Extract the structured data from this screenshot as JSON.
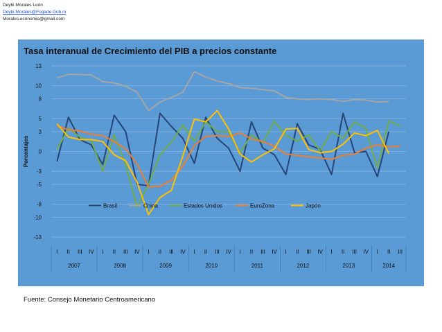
{
  "header": {
    "author": "Deybi Morales León",
    "email1": "Deybi.Morales@Fogade.Gob.ni",
    "email2": "Morales.economia@gmail.com"
  },
  "source": "Fuente: Consejo Monetario Centroamericano",
  "colors": {
    "panel": "#5b9bd5",
    "Brasil": "#264478",
    "China": "#a5a5a5",
    "Estados Unidos": "#70ad47",
    "EuroZona": "#ed7d31",
    "Japón": "#ffc000"
  },
  "chart_data": {
    "type": "line",
    "title": "Tasa interanual de Crecimiento del PIB a precios constante",
    "ylabel": "Porcentajes",
    "xlabel": "",
    "ylim": [
      -13,
      13
    ],
    "yticks": [
      13,
      10,
      8,
      5,
      3,
      0,
      -3,
      -5,
      -8,
      -10,
      -13
    ],
    "grid": true,
    "legend": "inside-bottom-center",
    "quarters": [
      "I",
      "II",
      "III",
      "IV",
      "I",
      "II",
      "III",
      "IV",
      "I",
      "II",
      "III",
      "IV",
      "I",
      "II",
      "III",
      "IV",
      "I",
      "II",
      "III",
      "IV",
      "I",
      "II",
      "III",
      "IV",
      "I",
      "II",
      "III",
      "IV",
      "I",
      "II",
      "III"
    ],
    "years": [
      "2007",
      "2008",
      "2009",
      "2010",
      "2011",
      "2012",
      "2013",
      "2014"
    ],
    "series": [
      {
        "name": "Brasil",
        "values": [
          -1.5,
          5.2,
          1.8,
          1.0,
          -2.0,
          5.5,
          3.0,
          -5.0,
          -5.2,
          5.8,
          3.8,
          2.0,
          -1.8,
          5.2,
          2.0,
          0.5,
          -3.0,
          4.5,
          0.5,
          -0.5,
          -3.5,
          4.2,
          1.0,
          0.3,
          -3.5,
          5.8,
          -0.2,
          0.0,
          -3.8,
          3.0,
          null
        ]
      },
      {
        "name": "China",
        "values": [
          11.2,
          11.7,
          11.7,
          11.6,
          10.6,
          10.4,
          9.9,
          9.0,
          6.2,
          7.5,
          8.2,
          9.0,
          12.1,
          11.3,
          10.7,
          10.3,
          9.7,
          9.6,
          9.4,
          9.2,
          8.2,
          8.0,
          7.9,
          8.0,
          7.9,
          7.6,
          7.9,
          7.8,
          7.5,
          7.6,
          null
        ]
      },
      {
        "name": "Estados Unidos",
        "values": [
          0.3,
          3.5,
          2.2,
          1.6,
          -3.0,
          2.5,
          -2.0,
          -8.5,
          -5.0,
          -0.5,
          1.4,
          4.0,
          1.5,
          4.5,
          3.0,
          3.0,
          -0.2,
          2.5,
          1.3,
          4.6,
          2.4,
          1.6,
          2.5,
          0.1,
          3.0,
          2.0,
          4.5,
          3.5,
          -2.5,
          4.6,
          3.9
        ]
      },
      {
        "name": "EuroZona",
        "values": [
          3.9,
          3.3,
          3.1,
          2.6,
          2.4,
          1.5,
          0.4,
          -1.9,
          -5.4,
          -5.3,
          -4.4,
          -2.2,
          0.9,
          2.3,
          2.4,
          2.3,
          2.8,
          1.9,
          1.5,
          0.8,
          -0.4,
          -0.6,
          -0.8,
          -1.0,
          -1.2,
          -0.6,
          -0.4,
          0.5,
          1.0,
          0.7,
          0.8
        ]
      },
      {
        "name": "Japón",
        "values": [
          4.2,
          2.2,
          1.8,
          1.8,
          1.5,
          -0.5,
          -1.4,
          -4.7,
          -9.6,
          -7.0,
          -5.9,
          -0.7,
          4.9,
          4.5,
          6.2,
          3.4,
          -0.4,
          -1.6,
          -0.5,
          0.4,
          3.4,
          3.5,
          0.3,
          -0.2,
          0.0,
          1.1,
          2.8,
          2.4,
          3.2,
          -0.3,
          null
        ]
      }
    ]
  }
}
